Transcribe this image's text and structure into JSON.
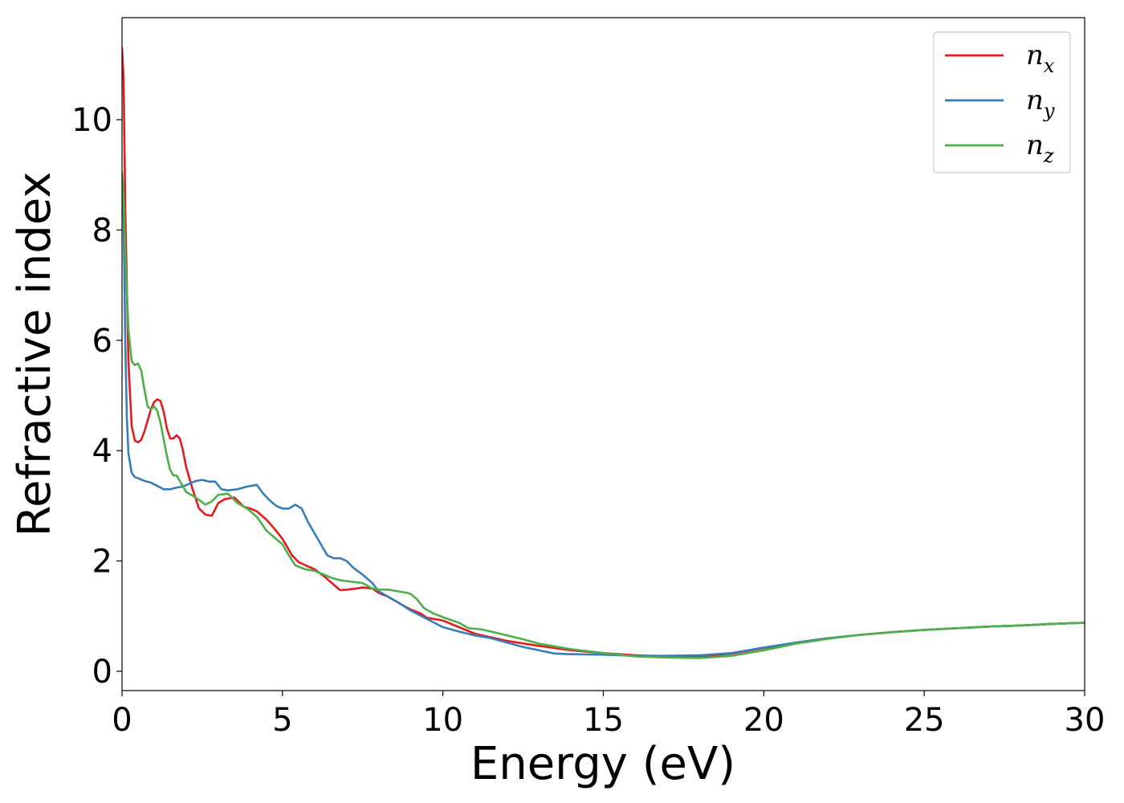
{
  "chart_data": {
    "type": "line",
    "xlabel": "Energy (eV)",
    "ylabel": "Refractive index",
    "xlim": [
      0,
      30
    ],
    "ylim": [
      -0.35,
      11.85
    ],
    "xticks": [
      0,
      5,
      10,
      15,
      20,
      25,
      30
    ],
    "yticks": [
      0,
      2,
      4,
      6,
      8,
      10
    ],
    "grid": false,
    "legend_position": "top-right",
    "series": [
      {
        "name": "n_x",
        "label_base": "n",
        "label_sub": "x",
        "color": "#e41a1c",
        "points": [
          [
            0,
            11.3
          ],
          [
            0.05,
            10.7
          ],
          [
            0.1,
            8.4
          ],
          [
            0.2,
            5.6
          ],
          [
            0.3,
            4.45
          ],
          [
            0.4,
            4.18
          ],
          [
            0.5,
            4.15
          ],
          [
            0.6,
            4.2
          ],
          [
            0.7,
            4.35
          ],
          [
            0.8,
            4.55
          ],
          [
            0.9,
            4.75
          ],
          [
            1.0,
            4.88
          ],
          [
            1.1,
            4.93
          ],
          [
            1.2,
            4.9
          ],
          [
            1.3,
            4.7
          ],
          [
            1.4,
            4.4
          ],
          [
            1.5,
            4.22
          ],
          [
            1.6,
            4.22
          ],
          [
            1.7,
            4.28
          ],
          [
            1.8,
            4.22
          ],
          [
            1.9,
            4.0
          ],
          [
            2.0,
            3.7
          ],
          [
            2.2,
            3.3
          ],
          [
            2.4,
            2.95
          ],
          [
            2.6,
            2.84
          ],
          [
            2.8,
            2.82
          ],
          [
            3.0,
            3.05
          ],
          [
            3.2,
            3.12
          ],
          [
            3.5,
            3.15
          ],
          [
            3.8,
            2.98
          ],
          [
            4.0,
            2.95
          ],
          [
            4.2,
            2.9
          ],
          [
            4.5,
            2.75
          ],
          [
            4.8,
            2.55
          ],
          [
            5.0,
            2.4
          ],
          [
            5.3,
            2.1
          ],
          [
            5.5,
            1.98
          ],
          [
            5.8,
            1.9
          ],
          [
            6.0,
            1.85
          ],
          [
            6.3,
            1.72
          ],
          [
            6.5,
            1.62
          ],
          [
            6.8,
            1.47
          ],
          [
            7.0,
            1.48
          ],
          [
            7.3,
            1.5
          ],
          [
            7.5,
            1.52
          ],
          [
            7.8,
            1.5
          ],
          [
            8.0,
            1.42
          ],
          [
            8.3,
            1.35
          ],
          [
            8.5,
            1.28
          ],
          [
            8.8,
            1.18
          ],
          [
            9.0,
            1.12
          ],
          [
            9.3,
            1.05
          ],
          [
            9.5,
            0.97
          ],
          [
            10.0,
            0.92
          ],
          [
            10.5,
            0.8
          ],
          [
            11.0,
            0.68
          ],
          [
            12.0,
            0.55
          ],
          [
            13.0,
            0.46
          ],
          [
            14.0,
            0.38
          ],
          [
            15.0,
            0.33
          ],
          [
            16.0,
            0.29
          ],
          [
            17.0,
            0.27
          ],
          [
            18.0,
            0.27
          ],
          [
            19.0,
            0.32
          ],
          [
            20.0,
            0.42
          ],
          [
            21.0,
            0.52
          ],
          [
            22.0,
            0.6
          ],
          [
            23.0,
            0.66
          ],
          [
            24.0,
            0.71
          ],
          [
            25.0,
            0.75
          ],
          [
            26.0,
            0.78
          ],
          [
            27.0,
            0.81
          ],
          [
            28.0,
            0.83
          ],
          [
            29.0,
            0.86
          ],
          [
            30.0,
            0.88
          ]
        ]
      },
      {
        "name": "n_y",
        "label_base": "n",
        "label_sub": "y",
        "color": "#377eb8",
        "points": [
          [
            0,
            9.0
          ],
          [
            0.05,
            8.2
          ],
          [
            0.1,
            6.0
          ],
          [
            0.15,
            4.6
          ],
          [
            0.2,
            3.95
          ],
          [
            0.3,
            3.6
          ],
          [
            0.4,
            3.52
          ],
          [
            0.5,
            3.5
          ],
          [
            0.7,
            3.45
          ],
          [
            0.9,
            3.42
          ],
          [
            1.1,
            3.36
          ],
          [
            1.3,
            3.3
          ],
          [
            1.5,
            3.3
          ],
          [
            1.7,
            3.33
          ],
          [
            1.9,
            3.35
          ],
          [
            2.1,
            3.4
          ],
          [
            2.3,
            3.45
          ],
          [
            2.5,
            3.47
          ],
          [
            2.7,
            3.44
          ],
          [
            2.9,
            3.44
          ],
          [
            3.1,
            3.3
          ],
          [
            3.3,
            3.28
          ],
          [
            3.6,
            3.3
          ],
          [
            3.9,
            3.35
          ],
          [
            4.2,
            3.38
          ],
          [
            4.4,
            3.22
          ],
          [
            4.6,
            3.1
          ],
          [
            4.8,
            3.0
          ],
          [
            5.0,
            2.95
          ],
          [
            5.2,
            2.95
          ],
          [
            5.4,
            3.02
          ],
          [
            5.6,
            2.95
          ],
          [
            5.8,
            2.7
          ],
          [
            6.0,
            2.5
          ],
          [
            6.2,
            2.3
          ],
          [
            6.4,
            2.1
          ],
          [
            6.6,
            2.05
          ],
          [
            6.8,
            2.05
          ],
          [
            7.0,
            2.0
          ],
          [
            7.2,
            1.88
          ],
          [
            7.5,
            1.75
          ],
          [
            7.8,
            1.6
          ],
          [
            8.0,
            1.45
          ],
          [
            8.3,
            1.35
          ],
          [
            8.6,
            1.25
          ],
          [
            9.0,
            1.1
          ],
          [
            9.5,
            0.95
          ],
          [
            10.0,
            0.8
          ],
          [
            10.5,
            0.72
          ],
          [
            11.0,
            0.65
          ],
          [
            11.5,
            0.6
          ],
          [
            12.0,
            0.52
          ],
          [
            12.5,
            0.44
          ],
          [
            13.0,
            0.38
          ],
          [
            13.5,
            0.32
          ],
          [
            14.0,
            0.31
          ],
          [
            15.0,
            0.3
          ],
          [
            16.0,
            0.28
          ],
          [
            17.0,
            0.28
          ],
          [
            18.0,
            0.29
          ],
          [
            19.0,
            0.33
          ],
          [
            20.0,
            0.43
          ],
          [
            21.0,
            0.52
          ],
          [
            22.0,
            0.6
          ],
          [
            23.0,
            0.66
          ],
          [
            24.0,
            0.71
          ],
          [
            25.0,
            0.75
          ],
          [
            26.0,
            0.78
          ],
          [
            27.0,
            0.81
          ],
          [
            28.0,
            0.83
          ],
          [
            29.0,
            0.86
          ],
          [
            30.0,
            0.88
          ]
        ]
      },
      {
        "name": "n_z",
        "label_base": "n",
        "label_sub": "z",
        "color": "#4daf4a",
        "points": [
          [
            0,
            9.05
          ],
          [
            0.05,
            8.6
          ],
          [
            0.1,
            7.6
          ],
          [
            0.2,
            6.2
          ],
          [
            0.3,
            5.62
          ],
          [
            0.4,
            5.55
          ],
          [
            0.5,
            5.58
          ],
          [
            0.6,
            5.45
          ],
          [
            0.7,
            5.1
          ],
          [
            0.8,
            4.8
          ],
          [
            0.9,
            4.75
          ],
          [
            1.0,
            4.8
          ],
          [
            1.1,
            4.72
          ],
          [
            1.2,
            4.5
          ],
          [
            1.3,
            4.2
          ],
          [
            1.4,
            3.9
          ],
          [
            1.5,
            3.65
          ],
          [
            1.6,
            3.55
          ],
          [
            1.7,
            3.55
          ],
          [
            1.8,
            3.45
          ],
          [
            2.0,
            3.25
          ],
          [
            2.3,
            3.15
          ],
          [
            2.6,
            3.02
          ],
          [
            2.8,
            3.08
          ],
          [
            3.0,
            3.2
          ],
          [
            3.3,
            3.22
          ],
          [
            3.6,
            3.05
          ],
          [
            3.9,
            2.95
          ],
          [
            4.2,
            2.8
          ],
          [
            4.5,
            2.55
          ],
          [
            4.8,
            2.4
          ],
          [
            5.0,
            2.3
          ],
          [
            5.2,
            2.1
          ],
          [
            5.4,
            1.92
          ],
          [
            5.7,
            1.85
          ],
          [
            6.0,
            1.82
          ],
          [
            6.3,
            1.75
          ],
          [
            6.5,
            1.7
          ],
          [
            6.8,
            1.65
          ],
          [
            7.2,
            1.62
          ],
          [
            7.5,
            1.6
          ],
          [
            7.8,
            1.5
          ],
          [
            8.0,
            1.48
          ],
          [
            8.3,
            1.48
          ],
          [
            8.6,
            1.45
          ],
          [
            8.9,
            1.42
          ],
          [
            9.0,
            1.4
          ],
          [
            9.2,
            1.3
          ],
          [
            9.4,
            1.15
          ],
          [
            9.7,
            1.05
          ],
          [
            10.0,
            0.98
          ],
          [
            10.5,
            0.88
          ],
          [
            10.8,
            0.78
          ],
          [
            11.2,
            0.76
          ],
          [
            11.5,
            0.72
          ],
          [
            12.0,
            0.65
          ],
          [
            12.5,
            0.58
          ],
          [
            13.0,
            0.5
          ],
          [
            13.5,
            0.45
          ],
          [
            14.0,
            0.4
          ],
          [
            15.0,
            0.33
          ],
          [
            16.0,
            0.27
          ],
          [
            17.0,
            0.25
          ],
          [
            18.0,
            0.24
          ],
          [
            19.0,
            0.28
          ],
          [
            20.0,
            0.38
          ],
          [
            21.0,
            0.5
          ],
          [
            22.0,
            0.59
          ],
          [
            23.0,
            0.66
          ],
          [
            24.0,
            0.71
          ],
          [
            25.0,
            0.75
          ],
          [
            26.0,
            0.78
          ],
          [
            27.0,
            0.81
          ],
          [
            28.0,
            0.83
          ],
          [
            29.0,
            0.86
          ],
          [
            30.0,
            0.88
          ]
        ]
      }
    ]
  }
}
